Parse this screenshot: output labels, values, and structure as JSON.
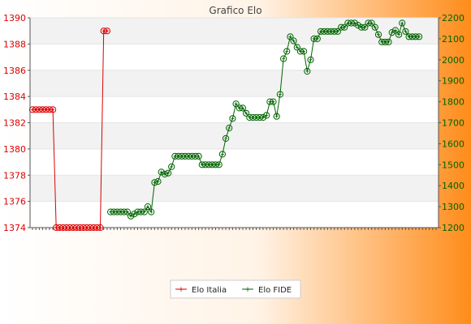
{
  "colors": {
    "italia": "#dd0000",
    "fide": "#006400",
    "band_light": "#f2f2f2",
    "band_white": "#ffffff",
    "background_gradient": [
      "#ffffff",
      "#ff8c1a"
    ]
  },
  "chart_data": {
    "type": "line",
    "title": "Grafico Elo",
    "grid": true,
    "legend_position": "bottom-center",
    "x_label_note": "x tick labels are vertical date strings (year + month), unreadable",
    "y_left": {
      "label": "",
      "range": [
        1374,
        1390
      ],
      "ticks": [
        1374,
        1376,
        1378,
        1380,
        1382,
        1384,
        1386,
        1388,
        1390
      ]
    },
    "y_right": {
      "label": "",
      "range": [
        1200,
        2200
      ],
      "ticks": [
        1200,
        1300,
        1400,
        1500,
        1600,
        1700,
        1800,
        1900,
        2000,
        2100,
        2200
      ]
    },
    "point_count": 120,
    "series": [
      {
        "name": "Elo Italia",
        "axis": "left",
        "start_index": 0,
        "values": [
          1383,
          1383,
          1383,
          1383,
          1383,
          1383,
          1383,
          1374,
          1374,
          1374,
          1374,
          1374,
          1374,
          1374,
          1374,
          1374,
          1374,
          1374,
          1374,
          1374,
          1374,
          1389,
          1389
        ]
      },
      {
        "name": "Elo FIDE",
        "axis": "right",
        "start_index": 23,
        "values": [
          1275,
          1275,
          1275,
          1275,
          1275,
          1275,
          1255,
          1265,
          1275,
          1275,
          1275,
          1300,
          1275,
          1415,
          1420,
          1465,
          1455,
          1460,
          1490,
          1540,
          1540,
          1540,
          1540,
          1540,
          1540,
          1540,
          1540,
          1500,
          1500,
          1500,
          1500,
          1500,
          1500,
          1550,
          1625,
          1675,
          1720,
          1790,
          1770,
          1770,
          1745,
          1725,
          1725,
          1725,
          1725,
          1725,
          1735,
          1800,
          1800,
          1730,
          1835,
          2005,
          2040,
          2110,
          2090,
          2060,
          2040,
          2040,
          1945,
          2000,
          2100,
          2100,
          2135,
          2135,
          2135,
          2135,
          2135,
          2135,
          2155,
          2155,
          2175,
          2175,
          2175,
          2165,
          2155,
          2155,
          2175,
          2175,
          2155,
          2120,
          2085,
          2085,
          2085,
          2130,
          2140,
          2120,
          2175,
          2135,
          2110,
          2110,
          2110,
          2110
        ]
      }
    ]
  }
}
